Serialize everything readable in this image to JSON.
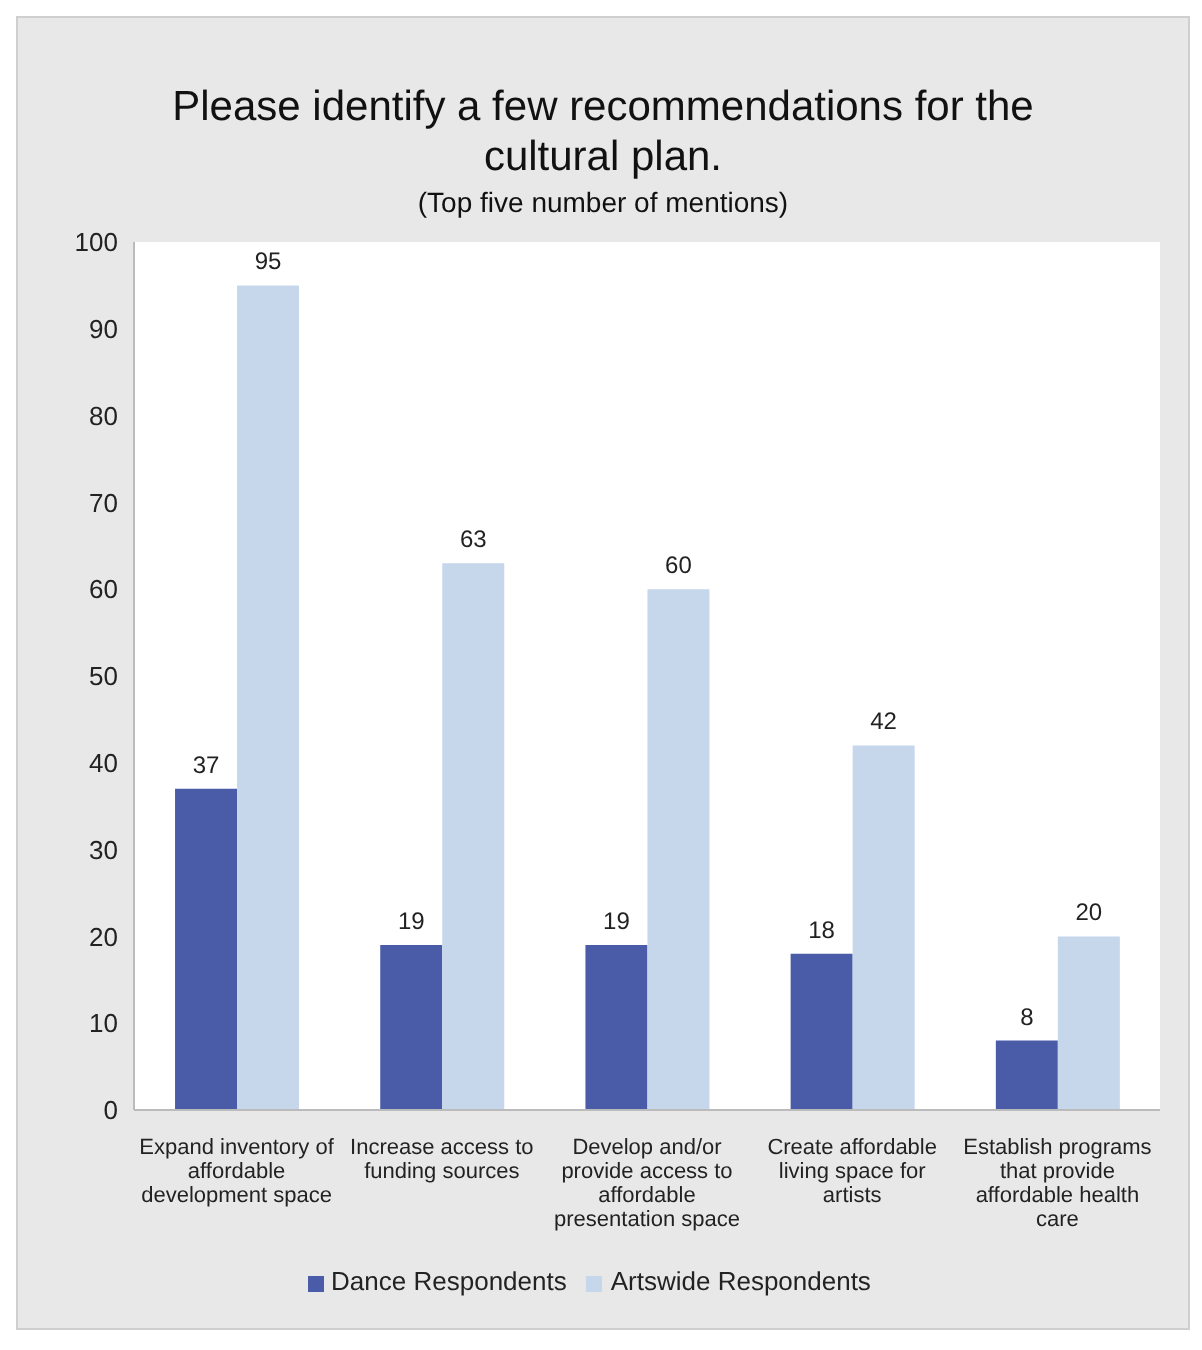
{
  "chart_data": {
    "type": "bar",
    "title": "Please identify a few recommendations for the cultural plan.",
    "subtitle": "(Top five number of mentions)",
    "categories": [
      "Expand inventory of affordable development space",
      "Increase access to funding sources",
      "Develop and/or provide access to affordable presentation space",
      "Create affordable living space for artists",
      "Establish programs that provide affordable health care"
    ],
    "series": [
      {
        "name": "Dance Respondents",
        "color": "#4a5ca8",
        "values": [
          37,
          19,
          19,
          18,
          8
        ]
      },
      {
        "name": "Artswide Respondents",
        "color": "#c6d6eb",
        "values": [
          95,
          63,
          60,
          42,
          20
        ]
      }
    ],
    "ylim": [
      0,
      100
    ],
    "yticks": [
      0,
      10,
      20,
      30,
      40,
      50,
      60,
      70,
      80,
      90,
      100
    ],
    "data_labels": true,
    "grid": false,
    "legend": "bottom"
  }
}
